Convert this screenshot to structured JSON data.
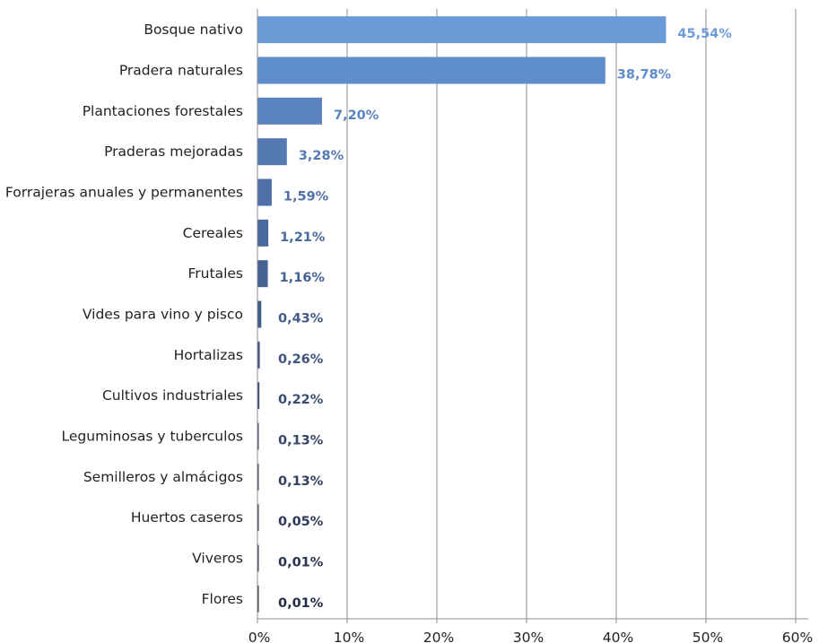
{
  "chart_data": {
    "type": "bar",
    "orientation": "horizontal",
    "categories": [
      "Bosque nativo",
      "Pradera naturales",
      "Plantaciones forestales",
      "Praderas mejoradas",
      "Forrajeras anuales y permanentes",
      "Cereales",
      "Frutales",
      "Vides para vino y pisco",
      "Hortalizas",
      "Cultivos industriales",
      "Leguminosas y tuberculos",
      "Semilleros y almácigos",
      "Huertos caseros",
      "Viveros",
      "Flores"
    ],
    "values": [
      45.54,
      38.78,
      7.2,
      3.28,
      1.59,
      1.21,
      1.16,
      0.43,
      0.26,
      0.22,
      0.13,
      0.13,
      0.05,
      0.01,
      0.01
    ],
    "value_labels": [
      "45,54%",
      "38,78%",
      "7,20%",
      "3,28%",
      "1,59%",
      "1,21%",
      "1,16%",
      "0,43%",
      "0,26%",
      "0,22%",
      "0,13%",
      "0,13%",
      "0,05%",
      "0,01%",
      "0,01%"
    ],
    "xlim": [
      0,
      60
    ],
    "xticks": [
      "0%",
      "10%",
      "20%",
      "30%",
      "40%",
      "50%",
      "60%"
    ],
    "grid": "vertical",
    "colors": [
      "#6b9bd6",
      "#5e8ccc",
      "#5a83bf",
      "#5579b3",
      "#4f70a8",
      "#4a699d",
      "#466292",
      "#425b88",
      "#3d537e",
      "#394c73",
      "#35466a",
      "#313f61",
      "#2d3958",
      "#29324f",
      "#252c46"
    ]
  }
}
